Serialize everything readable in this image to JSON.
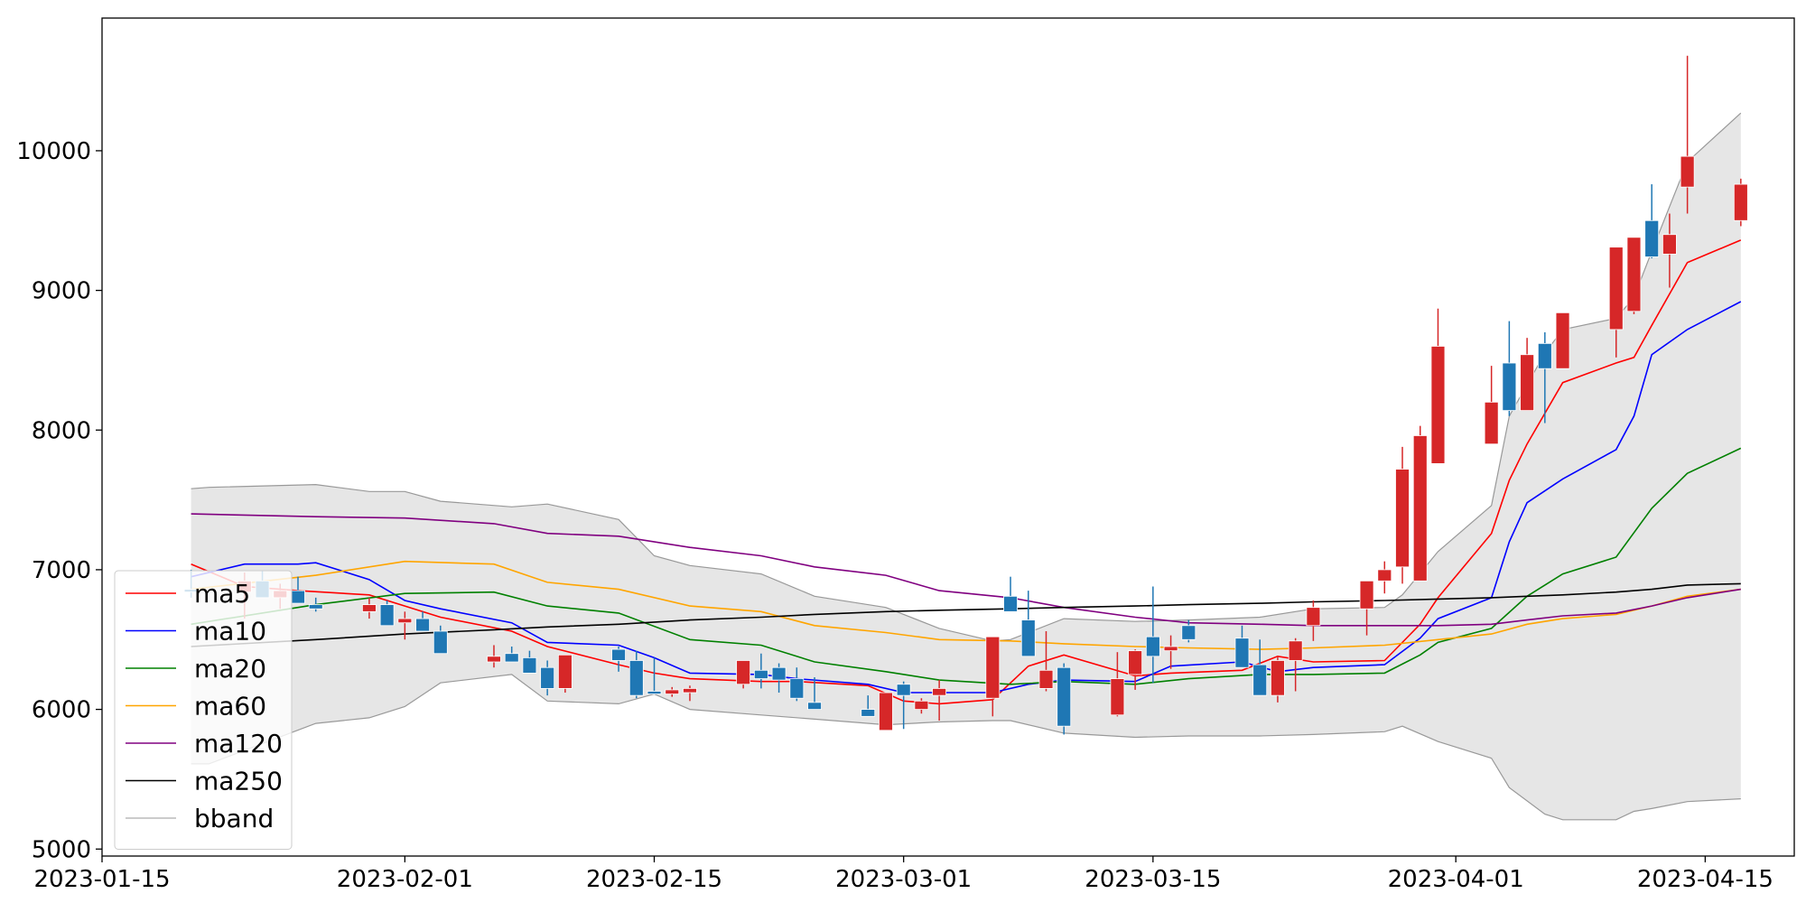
{
  "chart_data": {
    "type": "candlestick",
    "title": "",
    "xlabel": "",
    "ylabel": "",
    "xlim": [
      "2023-01-15",
      "2023-04-20"
    ],
    "ylim": [
      4950,
      10950
    ],
    "x_ticks": [
      "2023-01-15",
      "2023-02-01",
      "2023-02-15",
      "2023-03-01",
      "2023-03-15",
      "2023-04-01",
      "2023-04-15"
    ],
    "y_ticks": [
      5000,
      6000,
      7000,
      8000,
      9000,
      10000
    ],
    "grid": false,
    "legend_position": "lower-left",
    "colors": {
      "up": "#d62728",
      "down": "#1f77b4",
      "band_fill": "#e6e6e6",
      "band_line": "#999999"
    },
    "candles": {
      "dates": [
        "2023-01-20",
        "2023-01-23",
        "2023-01-24",
        "2023-01-25",
        "2023-01-26",
        "2023-01-27",
        "2023-01-30",
        "2023-01-31",
        "2023-02-01",
        "2023-02-02",
        "2023-02-03",
        "2023-02-06",
        "2023-02-07",
        "2023-02-08",
        "2023-02-09",
        "2023-02-10",
        "2023-02-13",
        "2023-02-14",
        "2023-02-15",
        "2023-02-16",
        "2023-02-17",
        "2023-02-20",
        "2023-02-21",
        "2023-02-22",
        "2023-02-23",
        "2023-02-24",
        "2023-02-27",
        "2023-02-28",
        "2023-03-01",
        "2023-03-02",
        "2023-03-03",
        "2023-03-06",
        "2023-03-07",
        "2023-03-08",
        "2023-03-09",
        "2023-03-10",
        "2023-03-13",
        "2023-03-14",
        "2023-03-15",
        "2023-03-16",
        "2023-03-17",
        "2023-03-20",
        "2023-03-21",
        "2023-03-22",
        "2023-03-23",
        "2023-03-24",
        "2023-03-27",
        "2023-03-28",
        "2023-03-29",
        "2023-03-30",
        "2023-03-31",
        "2023-04-03",
        "2023-04-04",
        "2023-04-05",
        "2023-04-06",
        "2023-04-07",
        "2023-04-10",
        "2023-04-11",
        "2023-04-12",
        "2023-04-13",
        "2023-04-14",
        "2023-04-17"
      ],
      "open": [
        6860,
        6840,
        6920,
        6800,
        6850,
        6750,
        6700,
        6750,
        6620,
        6650,
        6560,
        6340,
        6400,
        6370,
        6300,
        6150,
        6430,
        6350,
        6130,
        6110,
        6120,
        6180,
        6280,
        6300,
        6220,
        6050,
        6000,
        5850,
        6180,
        6000,
        6100,
        6080,
        6810,
        6640,
        6150,
        6300,
        5960,
        6250,
        6520,
        6420,
        6600,
        6510,
        6320,
        6100,
        6350,
        6600,
        6720,
        6920,
        7020,
        6920,
        7760,
        7900,
        8480,
        8140,
        8620,
        8440,
        8720,
        8850,
        9500,
        9260,
        9740,
        9500
      ],
      "high": [
        7000,
        6980,
        6990,
        6900,
        6950,
        6800,
        6800,
        6780,
        6700,
        6700,
        6600,
        6460,
        6450,
        6420,
        6350,
        6330,
        6450,
        6420,
        6370,
        6160,
        6170,
        6250,
        6400,
        6330,
        6300,
        6230,
        6100,
        6020,
        6200,
        6080,
        6210,
        6250,
        6950,
        6850,
        6560,
        6330,
        6410,
        6430,
        6880,
        6530,
        6640,
        6600,
        6500,
        6380,
        6510,
        6780,
        6790,
        7060,
        7880,
        8030,
        8870,
        8460,
        8780,
        8660,
        8700,
        8830,
        8980,
        9360,
        9760,
        9550,
        10680,
        9800
      ],
      "low": [
        6800,
        6650,
        6800,
        6720,
        6790,
        6700,
        6650,
        6650,
        6500,
        6580,
        6400,
        6300,
        6340,
        6270,
        6100,
        6120,
        6270,
        6080,
        6120,
        6090,
        6060,
        6150,
        6150,
        6120,
        6060,
        6020,
        5990,
        5860,
        5860,
        5970,
        5920,
        5950,
        6720,
        6380,
        6130,
        5820,
        5950,
        6140,
        6190,
        6290,
        6480,
        6350,
        6160,
        6050,
        6130,
        6490,
        6530,
        6830,
        6900,
        7660,
        7850,
        7960,
        8100,
        8340,
        8050,
        8440,
        8520,
        8830,
        9230,
        9020,
        9550,
        9460
      ],
      "close": [
        6840,
        6920,
        6800,
        6850,
        6760,
        6720,
        6750,
        6600,
        6650,
        6560,
        6400,
        6380,
        6340,
        6260,
        6150,
        6390,
        6350,
        6100,
        6110,
        6140,
        6150,
        6350,
        6220,
        6210,
        6080,
        6000,
        5950,
        6120,
        6100,
        6060,
        6150,
        6520,
        6700,
        6380,
        6280,
        5880,
        6220,
        6420,
        6380,
        6450,
        6500,
        6300,
        6100,
        6350,
        6490,
        6730,
        6920,
        7000,
        7720,
        7960,
        8600,
        8200,
        8140,
        8540,
        8440,
        8840,
        9310,
        9380,
        9240,
        9400,
        9960,
        9760
      ]
    },
    "series": [
      {
        "name": "ma5",
        "color": "#ff0000",
        "x": [
          "2023-01-20",
          "2023-01-23",
          "2023-01-24",
          "2023-01-26",
          "2023-01-30",
          "2023-02-01",
          "2023-02-03",
          "2023-02-07",
          "2023-02-09",
          "2023-02-13",
          "2023-02-15",
          "2023-02-17",
          "2023-02-21",
          "2023-02-23",
          "2023-02-27",
          "2023-03-01",
          "2023-03-03",
          "2023-03-06",
          "2023-03-08",
          "2023-03-10",
          "2023-03-14",
          "2023-03-16",
          "2023-03-20",
          "2023-03-22",
          "2023-03-24",
          "2023-03-28",
          "2023-03-30",
          "2023-03-31",
          "2023-04-03",
          "2023-04-04",
          "2023-04-05",
          "2023-04-07",
          "2023-04-10",
          "2023-04-11",
          "2023-04-12",
          "2023-04-14",
          "2023-04-17"
        ],
        "y": [
          7040,
          6880,
          6870,
          6850,
          6820,
          6740,
          6660,
          6560,
          6450,
          6320,
          6260,
          6220,
          6200,
          6200,
          6170,
          6060,
          6040,
          6070,
          6310,
          6390,
          6240,
          6260,
          6280,
          6380,
          6340,
          6350,
          6610,
          6800,
          7260,
          7640,
          7900,
          8340,
          8480,
          8520,
          8750,
          9200,
          9360
        ]
      },
      {
        "name": "ma10",
        "color": "#0000ff",
        "x": [
          "2023-01-20",
          "2023-01-23",
          "2023-01-26",
          "2023-01-27",
          "2023-01-30",
          "2023-02-01",
          "2023-02-03",
          "2023-02-07",
          "2023-02-09",
          "2023-02-13",
          "2023-02-15",
          "2023-02-17",
          "2023-02-21",
          "2023-02-23",
          "2023-02-27",
          "2023-03-01",
          "2023-03-03",
          "2023-03-06",
          "2023-03-08",
          "2023-03-10",
          "2023-03-14",
          "2023-03-16",
          "2023-03-20",
          "2023-03-22",
          "2023-03-24",
          "2023-03-28",
          "2023-03-30",
          "2023-03-31",
          "2023-04-03",
          "2023-04-04",
          "2023-04-05",
          "2023-04-07",
          "2023-04-10",
          "2023-04-11",
          "2023-04-12",
          "2023-04-14",
          "2023-04-17"
        ],
        "y": [
          6950,
          7040,
          7040,
          7050,
          6930,
          6780,
          6720,
          6620,
          6480,
          6460,
          6370,
          6260,
          6250,
          6220,
          6180,
          6120,
          6120,
          6120,
          6180,
          6210,
          6200,
          6310,
          6340,
          6270,
          6300,
          6320,
          6510,
          6650,
          6800,
          7200,
          7480,
          7650,
          7860,
          8100,
          8540,
          8720,
          8920
        ]
      },
      {
        "name": "ma20",
        "color": "#008000",
        "x": [
          "2023-01-20",
          "2023-01-27",
          "2023-02-01",
          "2023-02-06",
          "2023-02-09",
          "2023-02-13",
          "2023-02-17",
          "2023-02-21",
          "2023-02-24",
          "2023-02-28",
          "2023-03-03",
          "2023-03-07",
          "2023-03-10",
          "2023-03-14",
          "2023-03-17",
          "2023-03-21",
          "2023-03-24",
          "2023-03-28",
          "2023-03-30",
          "2023-03-31",
          "2023-04-03",
          "2023-04-05",
          "2023-04-07",
          "2023-04-10",
          "2023-04-12",
          "2023-04-14",
          "2023-04-17"
        ],
        "y": [
          6610,
          6750,
          6830,
          6840,
          6740,
          6690,
          6500,
          6460,
          6340,
          6270,
          6210,
          6180,
          6200,
          6180,
          6220,
          6250,
          6250,
          6260,
          6390,
          6480,
          6580,
          6810,
          6970,
          7090,
          7440,
          7690,
          7870
        ]
      },
      {
        "name": "ma60",
        "color": "#ffa500",
        "x": [
          "2023-01-20",
          "2023-01-27",
          "2023-02-01",
          "2023-02-06",
          "2023-02-09",
          "2023-02-13",
          "2023-02-17",
          "2023-02-21",
          "2023-02-24",
          "2023-02-28",
          "2023-03-03",
          "2023-03-07",
          "2023-03-10",
          "2023-03-14",
          "2023-03-17",
          "2023-03-21",
          "2023-03-24",
          "2023-03-28",
          "2023-03-31",
          "2023-04-03",
          "2023-04-05",
          "2023-04-07",
          "2023-04-10",
          "2023-04-12",
          "2023-04-14",
          "2023-04-17"
        ],
        "y": [
          6860,
          6960,
          7060,
          7040,
          6910,
          6860,
          6740,
          6700,
          6600,
          6550,
          6500,
          6490,
          6470,
          6450,
          6440,
          6430,
          6440,
          6460,
          6500,
          6540,
          6610,
          6650,
          6680,
          6740,
          6810,
          6860
        ]
      },
      {
        "name": "ma120",
        "color": "#800080",
        "x": [
          "2023-01-20",
          "2023-01-27",
          "2023-02-01",
          "2023-02-06",
          "2023-02-09",
          "2023-02-13",
          "2023-02-17",
          "2023-02-21",
          "2023-02-24",
          "2023-02-28",
          "2023-03-03",
          "2023-03-07",
          "2023-03-10",
          "2023-03-14",
          "2023-03-17",
          "2023-03-21",
          "2023-03-24",
          "2023-03-28",
          "2023-03-31",
          "2023-04-03",
          "2023-04-05",
          "2023-04-07",
          "2023-04-10",
          "2023-04-12",
          "2023-04-14",
          "2023-04-17"
        ],
        "y": [
          7400,
          7380,
          7370,
          7330,
          7260,
          7240,
          7160,
          7100,
          7020,
          6960,
          6850,
          6800,
          6730,
          6660,
          6620,
          6610,
          6600,
          6600,
          6600,
          6610,
          6640,
          6670,
          6690,
          6740,
          6800,
          6860
        ]
      },
      {
        "name": "ma250",
        "color": "#000000",
        "x": [
          "2023-01-20",
          "2023-01-27",
          "2023-02-01",
          "2023-02-06",
          "2023-02-09",
          "2023-02-13",
          "2023-02-17",
          "2023-02-21",
          "2023-02-24",
          "2023-02-28",
          "2023-03-03",
          "2023-03-07",
          "2023-03-10",
          "2023-03-14",
          "2023-03-17",
          "2023-03-21",
          "2023-03-24",
          "2023-03-28",
          "2023-03-31",
          "2023-04-03",
          "2023-04-05",
          "2023-04-07",
          "2023-04-10",
          "2023-04-12",
          "2023-04-14",
          "2023-04-17"
        ],
        "y": [
          6450,
          6500,
          6540,
          6570,
          6590,
          6610,
          6640,
          6660,
          6680,
          6700,
          6710,
          6720,
          6730,
          6740,
          6750,
          6760,
          6770,
          6780,
          6790,
          6800,
          6810,
          6820,
          6840,
          6860,
          6890,
          6900
        ]
      }
    ],
    "bband": {
      "name": "bband",
      "x": [
        "2023-01-20",
        "2023-01-21",
        "2023-01-27",
        "2023-01-30",
        "2023-02-01",
        "2023-02-03",
        "2023-02-07",
        "2023-02-09",
        "2023-02-13",
        "2023-02-15",
        "2023-02-17",
        "2023-02-21",
        "2023-02-24",
        "2023-02-28",
        "2023-03-03",
        "2023-03-06",
        "2023-03-07",
        "2023-03-10",
        "2023-03-14",
        "2023-03-17",
        "2023-03-21",
        "2023-03-24",
        "2023-03-28",
        "2023-03-29",
        "2023-03-31",
        "2023-04-03",
        "2023-04-04",
        "2023-04-06",
        "2023-04-07",
        "2023-04-10",
        "2023-04-11",
        "2023-04-12",
        "2023-04-14",
        "2023-04-17"
      ],
      "upper": [
        7580,
        7590,
        7610,
        7560,
        7560,
        7490,
        7450,
        7470,
        7360,
        7100,
        7030,
        6970,
        6810,
        6730,
        6580,
        6490,
        6500,
        6650,
        6630,
        6640,
        6660,
        6720,
        6730,
        6820,
        7130,
        7460,
        8100,
        8550,
        8720,
        8800,
        8950,
        9280,
        9920,
        10270
      ],
      "lower": [
        5610,
        5610,
        5900,
        5940,
        6020,
        6190,
        6250,
        6060,
        6040,
        6110,
        6000,
        5960,
        5930,
        5890,
        5910,
        5920,
        5920,
        5830,
        5800,
        5810,
        5810,
        5820,
        5840,
        5880,
        5770,
        5650,
        5440,
        5250,
        5210,
        5210,
        5270,
        5290,
        5340,
        5360
      ]
    },
    "legend": [
      "ma5",
      "ma10",
      "ma20",
      "ma60",
      "ma120",
      "ma250",
      "bband"
    ]
  }
}
